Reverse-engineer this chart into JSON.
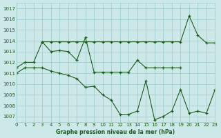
{
  "title": "Graphe pression niveau de la mer (hPa)",
  "bg_color": "#cce8e8",
  "grid_color": "#99cccc",
  "line_color": "#1a5c1a",
  "xlim": [
    0,
    23
  ],
  "ylim": [
    1006.5,
    1017.5
  ],
  "xticks": [
    0,
    1,
    2,
    3,
    4,
    5,
    6,
    7,
    8,
    9,
    10,
    11,
    12,
    13,
    14,
    15,
    16,
    17,
    18,
    19,
    20,
    21,
    22,
    23
  ],
  "yticks": [
    1007,
    1008,
    1009,
    1010,
    1011,
    1012,
    1013,
    1014,
    1015,
    1016,
    1017
  ],
  "line1_x": [
    3,
    4,
    5,
    6,
    7,
    8,
    9,
    10,
    11,
    12,
    13,
    14,
    15,
    16,
    17,
    18,
    19,
    20,
    21,
    22,
    23
  ],
  "line1_y": [
    1013.9,
    1013.9,
    1013.9,
    1013.9,
    1013.9,
    1013.9,
    1013.9,
    1013.9,
    1013.9,
    1013.9,
    1013.9,
    1013.9,
    1013.9,
    1013.9,
    1013.9,
    1013.9,
    1013.9,
    1016.3,
    1014.5,
    1013.8,
    1013.8
  ],
  "line2_x": [
    0,
    1,
    2,
    3,
    4,
    5,
    6,
    7,
    8,
    9,
    10,
    11,
    12,
    13,
    14,
    15,
    16,
    17,
    18,
    19
  ],
  "line2_y": [
    1011.5,
    1012.0,
    1012.0,
    1013.9,
    1013.0,
    1013.1,
    1013.0,
    1012.2,
    1014.3,
    1011.1,
    1011.1,
    1011.1,
    1011.1,
    1011.1,
    1012.2,
    1011.5,
    1011.5,
    1011.5,
    1011.5,
    1011.5
  ],
  "line3_x": [
    0,
    1,
    2,
    3,
    4,
    5,
    6,
    7,
    8,
    9,
    10,
    11,
    12,
    13,
    14,
    15,
    16,
    17,
    18,
    19,
    20,
    21,
    22,
    23
  ],
  "line3_y": [
    1011.0,
    1011.5,
    1011.5,
    1011.5,
    1011.2,
    1011.0,
    1010.8,
    1010.5,
    1009.7,
    1009.8,
    1009.0,
    1008.5,
    1007.2,
    1007.2,
    1007.5,
    1010.3,
    1006.7,
    1007.0,
    1007.5,
    1009.5,
    1007.3,
    1007.5,
    1007.3,
    1009.5
  ]
}
